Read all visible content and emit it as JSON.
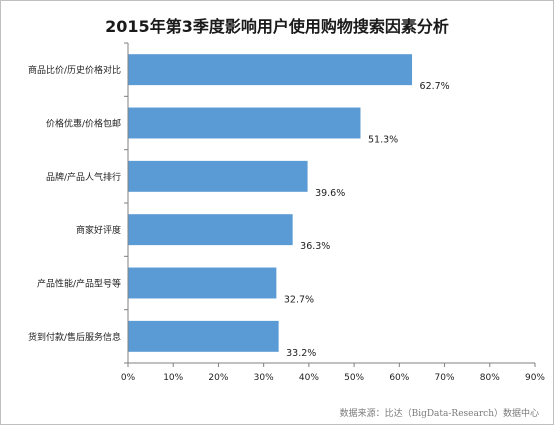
{
  "chart_data": {
    "type": "bar",
    "orientation": "horizontal",
    "title": "2015年第3季度影响用户使用购物搜索因素分析",
    "categories": [
      "商品比价/历史价格对比",
      "价格优惠/价格包邮",
      "品牌/产品人气排行",
      "商家好评度",
      "产品性能/产品型号等",
      "货到付款/售后服务信息"
    ],
    "values": [
      62.7,
      51.3,
      39.6,
      36.3,
      32.7,
      33.2
    ],
    "value_labels": [
      "62.7%",
      "51.3%",
      "39.6%",
      "36.3%",
      "32.7%",
      "33.2%"
    ],
    "xlim": [
      0,
      90
    ],
    "x_ticks": [
      0,
      10,
      20,
      30,
      40,
      50,
      60,
      70,
      80,
      90
    ],
    "x_tick_labels": [
      "0%",
      "10%",
      "20%",
      "30%",
      "40%",
      "50%",
      "60%",
      "70%",
      "80%",
      "90%"
    ],
    "xlabel": "",
    "ylabel": "",
    "grid": false,
    "legend": "none",
    "bar_color": "#5b9bd5",
    "source": "数据来源：比达（BigData-Research）数据中心"
  }
}
